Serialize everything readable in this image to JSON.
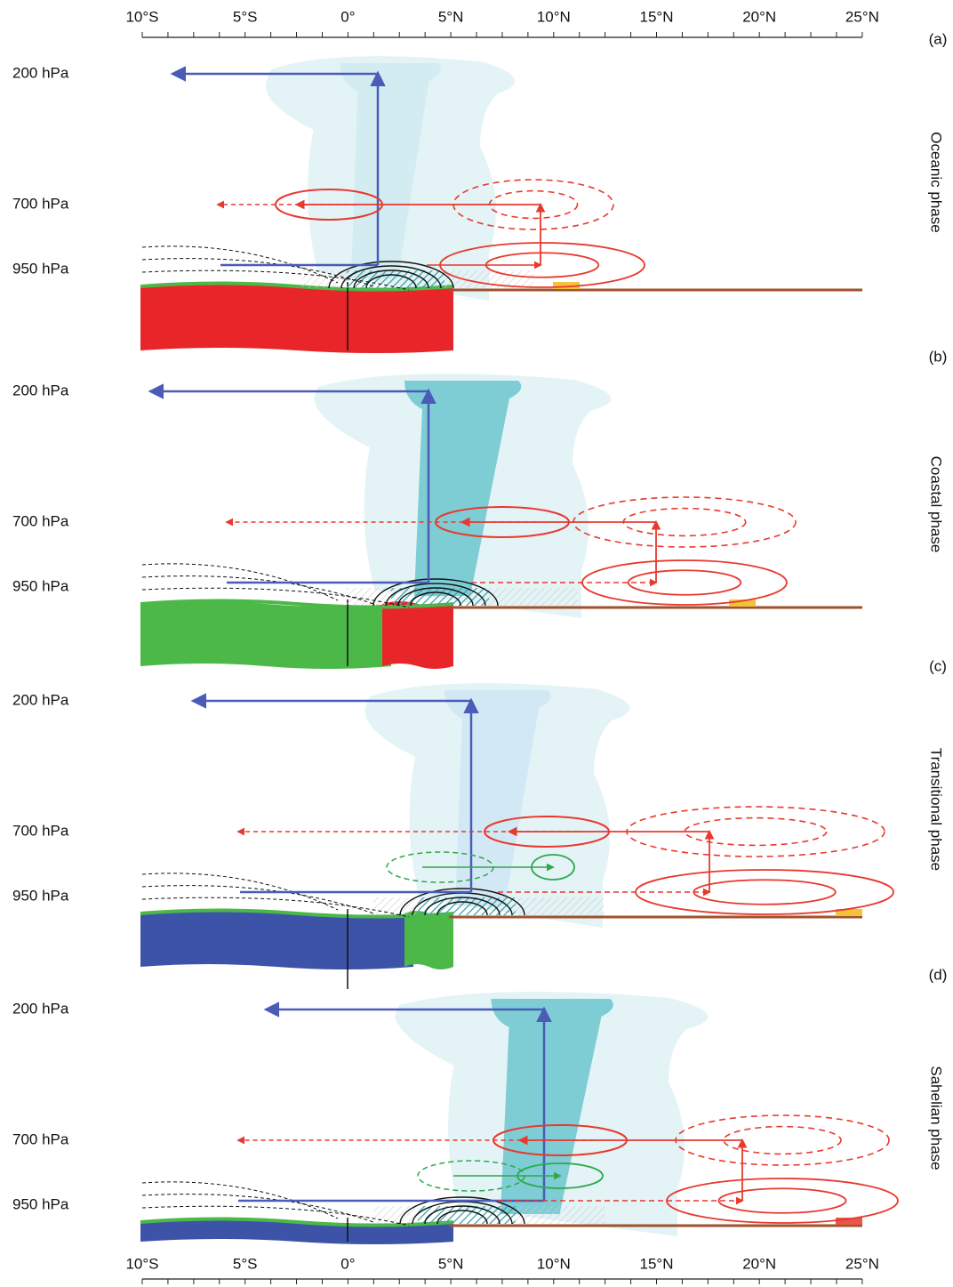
{
  "axis": {
    "top": [
      "10°S",
      "5°S",
      "0°",
      "5°N",
      "10°N",
      "15°N",
      "20°N",
      "25°N"
    ],
    "bottom": [
      "10°S",
      "5°S",
      "0°",
      "5°N",
      "10°N",
      "15°N",
      "20°N",
      "25°N"
    ]
  },
  "panels": [
    {
      "label": "(a)",
      "phase": "Oceanic phase",
      "levels": [
        "200 hPa",
        "700 hPa",
        "950 hPa"
      ]
    },
    {
      "label": "(b)",
      "phase": "Coastal phase",
      "levels": [
        "200 hPa",
        "700 hPa",
        "950 hPa"
      ]
    },
    {
      "label": "(c)",
      "phase": "Transitional phase",
      "levels": [
        "200 hPa",
        "700 hPa",
        "950 hPa"
      ]
    },
    {
      "label": "(d)",
      "phase": "Sahelian phase",
      "levels": [
        "200 hPa",
        "700 hPa",
        "950 hPa"
      ]
    }
  ]
}
